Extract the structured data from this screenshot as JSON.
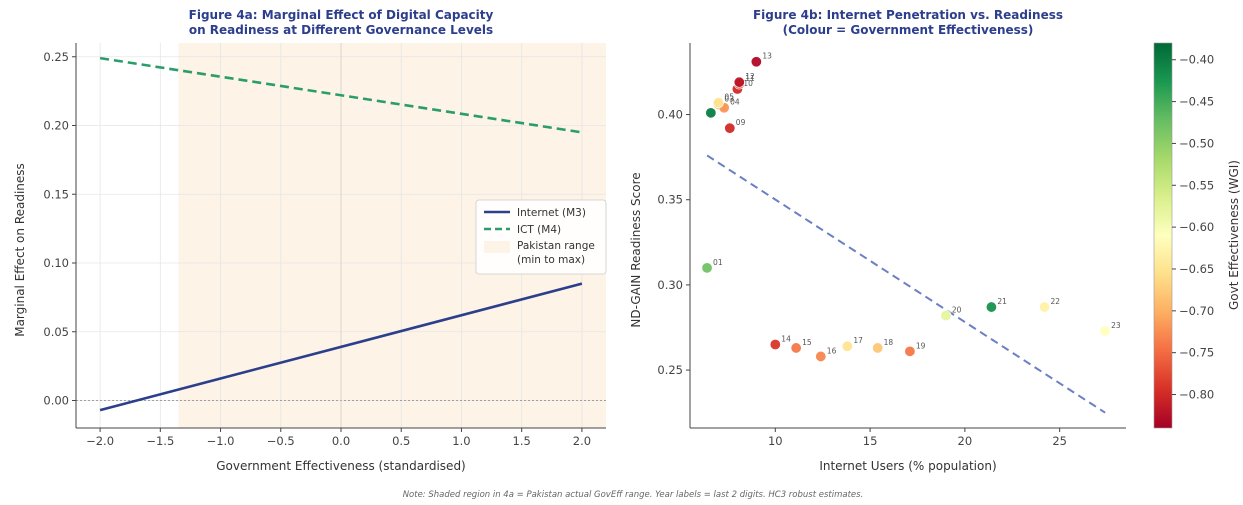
{
  "chart_data": [
    {
      "type": "line",
      "title_line1": "Figure 4a: Marginal Effect of Digital Capacity",
      "title_line2": "on Readiness at Different Governance Levels",
      "xlabel": "Government Effectiveness (standardised)",
      "ylabel": "Marginal Effect on Readiness",
      "xlim": [
        -2.2,
        2.2
      ],
      "ylim": [
        -0.02,
        0.26
      ],
      "xticks": [
        -2.0,
        -1.5,
        -1.0,
        -0.5,
        0.0,
        0.5,
        1.0,
        1.5,
        2.0
      ],
      "xtick_labels": [
        "−2.0",
        "−1.5",
        "−1.0",
        "−0.5",
        "0.0",
        "0.5",
        "1.0",
        "1.5",
        "2.0"
      ],
      "yticks": [
        0.0,
        0.05,
        0.1,
        0.15,
        0.2,
        0.25
      ],
      "ytick_labels": [
        "0.00",
        "0.05",
        "0.10",
        "0.15",
        "0.20",
        "0.25"
      ],
      "shaded_range": [
        -1.35,
        2.2
      ],
      "shade_color": "#fdf3e6",
      "series": [
        {
          "name": "Internet (M3)",
          "x": [
            -2.0,
            2.0
          ],
          "y": [
            -0.007,
            0.085
          ],
          "color": "#2b3f8c",
          "dash": "solid"
        },
        {
          "name": "ICT (M4)",
          "x": [
            -2.0,
            2.0
          ],
          "y": [
            0.249,
            0.195
          ],
          "color": "#2a9d6a",
          "dash": "dashed"
        }
      ],
      "legend": [
        {
          "label": "Internet (M3)"
        },
        {
          "label": "ICT (M4)"
        },
        {
          "label": "Pakistan range",
          "label2": "(min to max)"
        }
      ],
      "legend_position": "center-right",
      "grid": true
    },
    {
      "type": "scatter",
      "title_line1": "Figure 4b: Internet Penetration vs. Readiness",
      "title_line2": "(Colour = Government Effectiveness)",
      "xlabel": "Internet Users (% population)",
      "ylabel": "ND-GAIN Readiness Score",
      "xlim": [
        5.5,
        28.5
      ],
      "ylim": [
        0.216,
        0.442
      ],
      "xticks": [
        10,
        15,
        20,
        25
      ],
      "xtick_labels": [
        "10",
        "15",
        "20",
        "25"
      ],
      "yticks": [
        0.25,
        0.3,
        0.35,
        0.4
      ],
      "ytick_labels": [
        "0.25",
        "0.30",
        "0.35",
        "0.40"
      ],
      "points": [
        {
          "label": "01",
          "x": 6.4,
          "y": 0.31,
          "wgi": -0.48
        },
        {
          "label": "02",
          "x": 6.6,
          "y": 0.401,
          "wgi": -0.4
        },
        {
          "label": "03",
          "x": 7.0,
          "y": 0.406,
          "wgi": -0.68
        },
        {
          "label": "04",
          "x": 7.3,
          "y": 0.404,
          "wgi": -0.72
        },
        {
          "label": "05",
          "x": 7.0,
          "y": 0.407,
          "wgi": -0.65
        },
        {
          "label": "09",
          "x": 7.6,
          "y": 0.392,
          "wgi": -0.8
        },
        {
          "label": "10",
          "x": 8.0,
          "y": 0.415,
          "wgi": -0.8
        },
        {
          "label": "11",
          "x": 8.1,
          "y": 0.418,
          "wgi": -0.78
        },
        {
          "label": "12",
          "x": 8.1,
          "y": 0.419,
          "wgi": -0.82
        },
        {
          "label": "13",
          "x": 9.0,
          "y": 0.431,
          "wgi": -0.83
        },
        {
          "label": "14",
          "x": 10.0,
          "y": 0.265,
          "wgi": -0.79
        },
        {
          "label": "15",
          "x": 11.1,
          "y": 0.263,
          "wgi": -0.74
        },
        {
          "label": "16",
          "x": 12.4,
          "y": 0.258,
          "wgi": -0.73
        },
        {
          "label": "17",
          "x": 13.8,
          "y": 0.264,
          "wgi": -0.65
        },
        {
          "label": "18",
          "x": 15.4,
          "y": 0.263,
          "wgi": -0.68
        },
        {
          "label": "19",
          "x": 17.1,
          "y": 0.261,
          "wgi": -0.74
        },
        {
          "label": "20",
          "x": 19.0,
          "y": 0.282,
          "wgi": -0.58
        },
        {
          "label": "21",
          "x": 21.4,
          "y": 0.287,
          "wgi": -0.42
        },
        {
          "label": "22",
          "x": 24.2,
          "y": 0.287,
          "wgi": -0.63
        },
        {
          "label": "23",
          "x": 27.4,
          "y": 0.273,
          "wgi": -0.61
        }
      ],
      "trend": {
        "x": [
          6.4,
          27.4
        ],
        "y": [
          0.376,
          0.225
        ],
        "color": "#6b7fc4"
      },
      "colorbar": {
        "label": "Govt Effectiveness (WGI)",
        "min": -0.84,
        "max": -0.38,
        "ticks": [
          -0.4,
          -0.45,
          -0.5,
          -0.55,
          -0.6,
          -0.65,
          -0.7,
          -0.75,
          -0.8
        ],
        "tick_labels": [
          "−0.40",
          "−0.45",
          "−0.50",
          "−0.55",
          "−0.60",
          "−0.65",
          "−0.70",
          "−0.75",
          "−0.80"
        ],
        "colormap": [
          "#a50026",
          "#d73027",
          "#f46d43",
          "#fdae61",
          "#fee08b",
          "#ffffbf",
          "#d9ef8b",
          "#a6d96a",
          "#66bd63",
          "#1a9850",
          "#006837"
        ]
      },
      "grid": false
    }
  ],
  "note": "Note: Shaded region in 4a = Pakistan actual GovEff range. Year labels = last 2 digits. HC3 robust estimates."
}
